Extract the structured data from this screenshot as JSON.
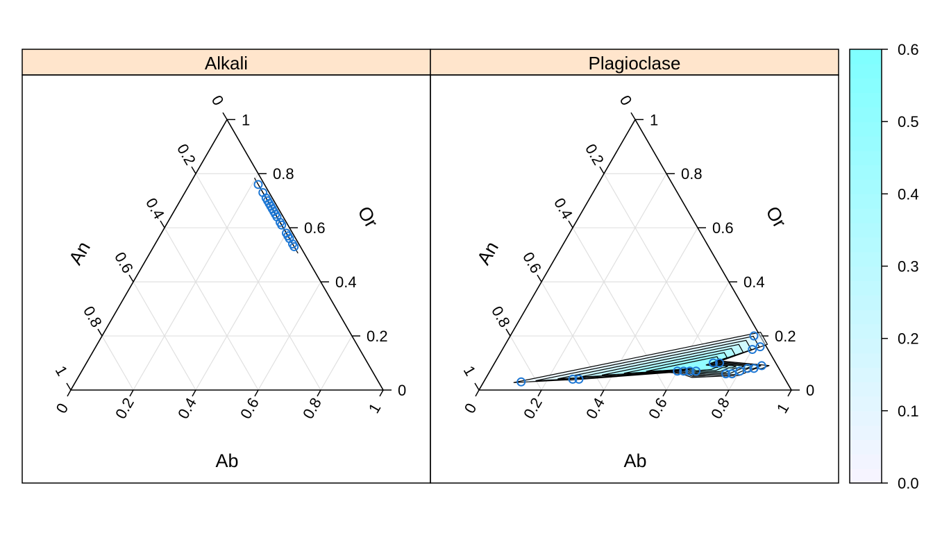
{
  "chart_data": {
    "type": "scatter",
    "subtype": "ternary-with-density-contours",
    "axes": {
      "bottom": "Ab",
      "left": "An",
      "right": "Or"
    },
    "ticks": [
      "0",
      "0.2",
      "0.4",
      "0.6",
      "0.8",
      "1"
    ],
    "grid": true,
    "panels": [
      {
        "name": "Alkali",
        "points": [
          {
            "Ab": 0.22,
            "Or": 0.76,
            "An": 0.02
          },
          {
            "Ab": 0.25,
            "Or": 0.73,
            "An": 0.02
          },
          {
            "Ab": 0.27,
            "Or": 0.71,
            "An": 0.02
          },
          {
            "Ab": 0.28,
            "Or": 0.7,
            "An": 0.02
          },
          {
            "Ab": 0.29,
            "Or": 0.69,
            "An": 0.02
          },
          {
            "Ab": 0.3,
            "Or": 0.68,
            "An": 0.02
          },
          {
            "Ab": 0.31,
            "Or": 0.67,
            "An": 0.02
          },
          {
            "Ab": 0.32,
            "Or": 0.66,
            "An": 0.02
          },
          {
            "Ab": 0.33,
            "Or": 0.65,
            "An": 0.02
          },
          {
            "Ab": 0.34,
            "Or": 0.64,
            "An": 0.02
          },
          {
            "Ab": 0.36,
            "Or": 0.62,
            "An": 0.02
          },
          {
            "Ab": 0.37,
            "Or": 0.61,
            "An": 0.02
          },
          {
            "Ab": 0.4,
            "Or": 0.58,
            "An": 0.02
          },
          {
            "Ab": 0.41,
            "Or": 0.57,
            "An": 0.02
          },
          {
            "Ab": 0.42,
            "Or": 0.56,
            "An": 0.02
          },
          {
            "Ab": 0.44,
            "Or": 0.54,
            "An": 0.02
          },
          {
            "Ab": 0.45,
            "Or": 0.53,
            "An": 0.02
          }
        ]
      },
      {
        "name": "Plagioclase",
        "points": [
          {
            "Ab": 0.12,
            "Or": 0.03,
            "An": 0.85
          },
          {
            "Ab": 0.28,
            "Or": 0.04,
            "An": 0.68
          },
          {
            "Ab": 0.3,
            "Or": 0.04,
            "An": 0.66
          },
          {
            "Ab": 0.6,
            "Or": 0.07,
            "An": 0.33
          },
          {
            "Ab": 0.62,
            "Or": 0.07,
            "An": 0.31
          },
          {
            "Ab": 0.64,
            "Or": 0.07,
            "An": 0.29
          },
          {
            "Ab": 0.66,
            "Or": 0.07,
            "An": 0.27
          },
          {
            "Ab": 0.7,
            "Or": 0.1,
            "An": 0.2
          },
          {
            "Ab": 0.72,
            "Or": 0.1,
            "An": 0.18
          },
          {
            "Ab": 0.76,
            "Or": 0.06,
            "An": 0.18
          },
          {
            "Ab": 0.78,
            "Or": 0.06,
            "An": 0.16
          },
          {
            "Ab": 0.8,
            "Or": 0.07,
            "An": 0.13
          },
          {
            "Ab": 0.82,
            "Or": 0.08,
            "An": 0.1
          },
          {
            "Ab": 0.84,
            "Or": 0.08,
            "An": 0.08
          },
          {
            "Ab": 0.86,
            "Or": 0.09,
            "An": 0.05
          },
          {
            "Ab": 0.8,
            "Or": 0.15,
            "An": 0.05
          },
          {
            "Ab": 0.82,
            "Or": 0.16,
            "An": 0.02
          },
          {
            "Ab": 0.78,
            "Or": 0.2,
            "An": 0.02
          }
        ]
      }
    ],
    "colorkey": {
      "ticks": [
        "0.0",
        "0.1",
        "0.2",
        "0.3",
        "0.4",
        "0.5",
        "0.6"
      ],
      "range": [
        0.0,
        0.6
      ],
      "low_color": "#f6f4ff",
      "high_color": "#7cffff"
    },
    "point_color": "#1f78d4",
    "strip_color": "#ffe5cc",
    "grid_color": "#e0e0e0"
  }
}
